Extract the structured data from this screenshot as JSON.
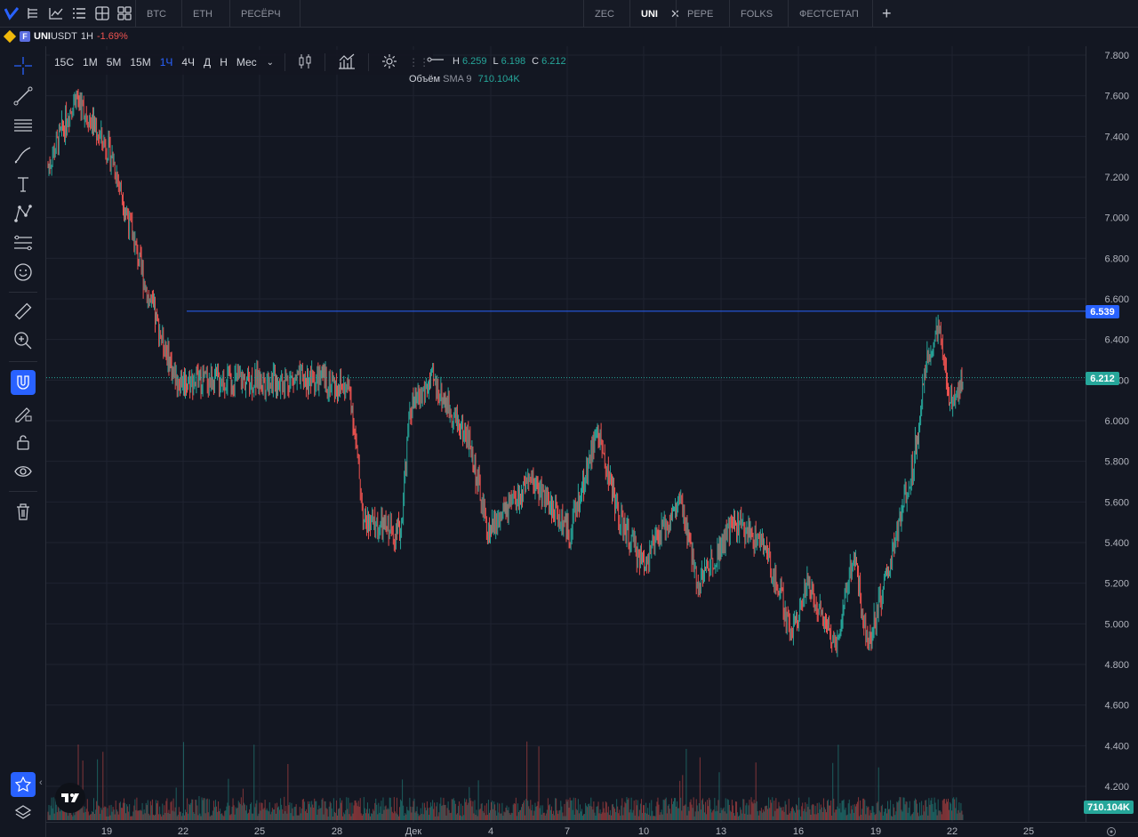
{
  "top_tabs": [
    {
      "label": "BTC",
      "active": false
    },
    {
      "label": "ETH",
      "active": false
    },
    {
      "label": "РЕСЁРЧ",
      "active": false
    },
    {
      "label": "ZEC",
      "active": false
    },
    {
      "label": "UNI",
      "active": true
    },
    {
      "label": "PEPE",
      "active": false
    },
    {
      "label": "FOLKS",
      "active": false
    },
    {
      "label": "ФЕСТСЕТАП",
      "active": false
    }
  ],
  "symbol": {
    "name": "UNI",
    "suffix": "USDT",
    "timeframe": "1H",
    "change": "-1.69%",
    "exchange_badge": "F"
  },
  "intervals": [
    {
      "label": "15С",
      "active": false
    },
    {
      "label": "1М",
      "active": false
    },
    {
      "label": "5М",
      "active": false
    },
    {
      "label": "15М",
      "active": false
    },
    {
      "label": "1Ч",
      "active": true
    },
    {
      "label": "4Ч",
      "active": false
    },
    {
      "label": "Д",
      "active": false
    },
    {
      "label": "Н",
      "active": false
    },
    {
      "label": "Мес",
      "active": false
    }
  ],
  "ohlc": {
    "h_label": "H",
    "h": "6.259",
    "l_label": "L",
    "l": "6.198",
    "c_label": "C",
    "c": "6.212"
  },
  "volume_legend": {
    "label": "Объём",
    "indicator": "SMA 9",
    "value": "710.104K"
  },
  "price_scale": [
    "7.800",
    "7.600",
    "7.400",
    "7.200",
    "7.000",
    "6.800",
    "6.600",
    "6.400",
    "6.200",
    "6.000",
    "5.800",
    "5.600",
    "5.400",
    "5.200",
    "5.000",
    "4.800",
    "4.600",
    "4.400",
    "4.200"
  ],
  "time_scale": [
    "19",
    "22",
    "25",
    "28",
    "Дек",
    "4",
    "7",
    "10",
    "13",
    "16",
    "19",
    "22",
    "25"
  ],
  "horizontal_line_price": 6.539,
  "horizontal_line_label": "6.539",
  "last_price_label": "6.212",
  "volume_label": "710.104K",
  "colors": {
    "up": "#26a69a",
    "down": "#ef5350",
    "accent": "#2962ff",
    "line": "#2962ff"
  },
  "left_tools": [
    "crosshair-icon",
    "trend-line-icon",
    "horizontal-lines-icon",
    "brush-icon",
    "text-icon",
    "pattern-icon",
    "fib-icon",
    "emoji-icon",
    "ruler-icon",
    "zoom-icon",
    "magnet-icon",
    "lock-drawing-icon",
    "lock-icon",
    "eye-icon",
    "trash-icon",
    "star-icon",
    "layers-icon"
  ],
  "chart_data": {
    "type": "candlestick",
    "ylim": [
      4.15,
      7.85
    ],
    "key_levels": [
      {
        "x": 0,
        "close": 7.25
      },
      {
        "x": 30,
        "close": 7.6
      },
      {
        "x": 70,
        "close": 7.3
      },
      {
        "x": 110,
        "close": 6.6
      },
      {
        "x": 140,
        "close": 6.2
      },
      {
        "x": 250,
        "close": 6.2
      },
      {
        "x": 300,
        "close": 6.2
      },
      {
        "x": 330,
        "close": 6.15
      },
      {
        "x": 345,
        "close": 5.5
      },
      {
        "x": 385,
        "close": 5.45
      },
      {
        "x": 395,
        "close": 6.05
      },
      {
        "x": 420,
        "close": 6.2
      },
      {
        "x": 460,
        "close": 5.9
      },
      {
        "x": 480,
        "close": 5.45
      },
      {
        "x": 530,
        "close": 5.7
      },
      {
        "x": 570,
        "close": 5.45
      },
      {
        "x": 600,
        "close": 5.95
      },
      {
        "x": 625,
        "close": 5.5
      },
      {
        "x": 650,
        "close": 5.3
      },
      {
        "x": 690,
        "close": 5.6
      },
      {
        "x": 710,
        "close": 5.2
      },
      {
        "x": 750,
        "close": 5.5
      },
      {
        "x": 780,
        "close": 5.4
      },
      {
        "x": 800,
        "close": 5.15
      },
      {
        "x": 810,
        "close": 4.95
      },
      {
        "x": 830,
        "close": 5.2
      },
      {
        "x": 860,
        "close": 4.9
      },
      {
        "x": 880,
        "close": 5.35
      },
      {
        "x": 895,
        "close": 4.9
      },
      {
        "x": 920,
        "close": 5.3
      },
      {
        "x": 945,
        "close": 5.8
      },
      {
        "x": 960,
        "close": 6.3
      },
      {
        "x": 972,
        "close": 6.45
      },
      {
        "x": 985,
        "close": 6.1
      },
      {
        "x": 1000,
        "close": 6.21
      }
    ]
  }
}
